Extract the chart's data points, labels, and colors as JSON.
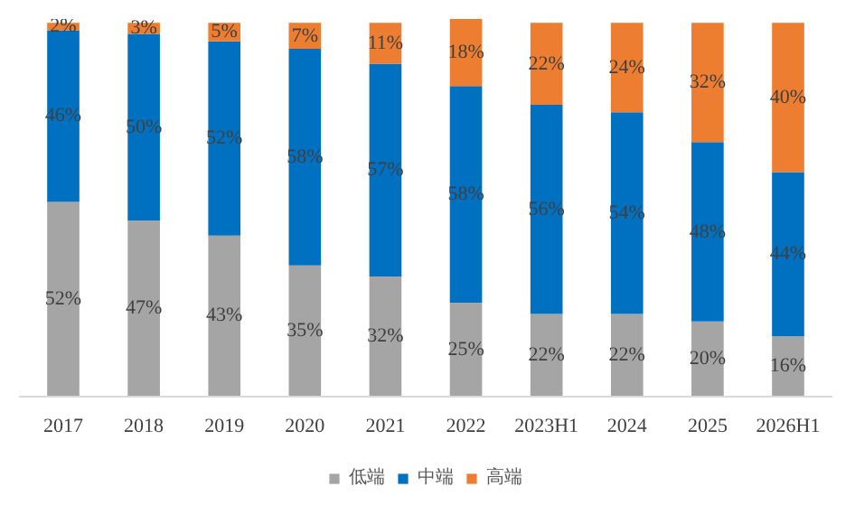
{
  "chart_data": {
    "type": "bar",
    "stacked": true,
    "categories": [
      "2017",
      "2018",
      "2019",
      "2020",
      "2021",
      "2022",
      "2023H1",
      "2024",
      "2025",
      "2026H1"
    ],
    "series": [
      {
        "name": "低端",
        "color": "#a5a5a5",
        "values": [
          52,
          47,
          43,
          35,
          32,
          25,
          22,
          22,
          20,
          16
        ],
        "value_labels": [
          "52%",
          "47%",
          "43%",
          "35%",
          "32%",
          "25%",
          "22%",
          "22%",
          "20%",
          "16%"
        ]
      },
      {
        "name": "中端",
        "color": "#0070c0",
        "values": [
          46,
          50,
          52,
          58,
          57,
          58,
          56,
          54,
          48,
          44
        ],
        "value_labels": [
          "46%",
          "50%",
          "52%",
          "58%",
          "57%",
          "58%",
          "56%",
          "54%",
          "48%",
          "44%"
        ]
      },
      {
        "name": "高端",
        "color": "#ed7d31",
        "values": [
          2,
          3,
          5,
          7,
          11,
          18,
          22,
          24,
          32,
          40
        ],
        "value_labels": [
          "2%",
          "3%",
          "5%",
          "7%",
          "11%",
          "18%",
          "22%",
          "24%",
          "32%",
          "40%"
        ]
      }
    ],
    "ylim": [
      0,
      101
    ],
    "tick_labels": "x",
    "grid": false,
    "legend": "bottom"
  }
}
